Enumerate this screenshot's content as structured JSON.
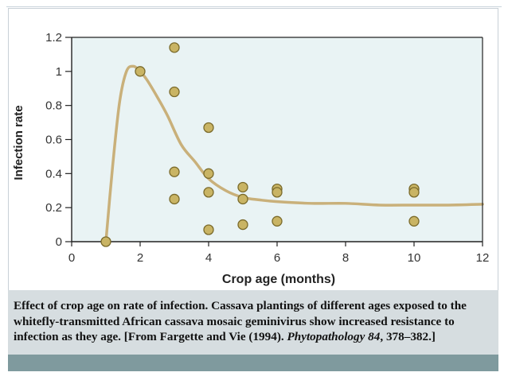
{
  "chart_data": {
    "type": "scatter",
    "xlabel": "Crop age (months)",
    "ylabel": "Infection rate",
    "xlim": [
      0,
      12
    ],
    "ylim": [
      0,
      1.2
    ],
    "xticks": [
      "0",
      "2",
      "4",
      "6",
      "8",
      "10",
      "12"
    ],
    "yticks": [
      "0",
      "0.2",
      "0.4",
      "0.6",
      "0.8",
      "1",
      "1.2"
    ],
    "points": [
      {
        "x": 1,
        "y": 0.0
      },
      {
        "x": 2,
        "y": 1.0
      },
      {
        "x": 3,
        "y": 1.14
      },
      {
        "x": 3,
        "y": 0.88
      },
      {
        "x": 3,
        "y": 0.41
      },
      {
        "x": 3,
        "y": 0.25
      },
      {
        "x": 4,
        "y": 0.67
      },
      {
        "x": 4,
        "y": 0.4
      },
      {
        "x": 4,
        "y": 0.29
      },
      {
        "x": 4,
        "y": 0.07
      },
      {
        "x": 5,
        "y": 0.32
      },
      {
        "x": 5,
        "y": 0.25
      },
      {
        "x": 5,
        "y": 0.1
      },
      {
        "x": 6,
        "y": 0.31
      },
      {
        "x": 6,
        "y": 0.29
      },
      {
        "x": 6,
        "y": 0.12
      },
      {
        "x": 10,
        "y": 0.31
      },
      {
        "x": 10,
        "y": 0.29
      },
      {
        "x": 10,
        "y": 0.12
      }
    ],
    "curve": {
      "x": [
        1.0,
        1.2,
        1.4,
        1.6,
        1.8,
        2.0,
        2.2,
        2.5,
        2.8,
        3.2,
        3.6,
        4.0,
        4.5,
        5.0,
        5.5,
        6.0,
        7.0,
        8.0,
        9.0,
        10.0,
        11.0,
        12.0
      ],
      "y": [
        0.0,
        0.45,
        0.82,
        1.0,
        1.03,
        1.0,
        0.95,
        0.85,
        0.74,
        0.57,
        0.47,
        0.37,
        0.3,
        0.26,
        0.245,
        0.235,
        0.225,
        0.225,
        0.215,
        0.215,
        0.215,
        0.22
      ]
    },
    "colors": {
      "plot_background": "#e9f3f4",
      "curve": "#c9b07a",
      "marker_fill": "#c9b464",
      "marker_stroke": "#7a6a2a"
    },
    "grid": false
  },
  "caption": {
    "text_before": "Effect of crop age on rate of infection. Cassava plantings of different ages exposed to the whitefly-transmitted African cassava mosaic geminivirus show increased resistance to infection as they age. [From Fargette and Vie (1994). ",
    "journal_italic": "Phytopathology 84",
    "text_after": ", 378–382.]"
  }
}
